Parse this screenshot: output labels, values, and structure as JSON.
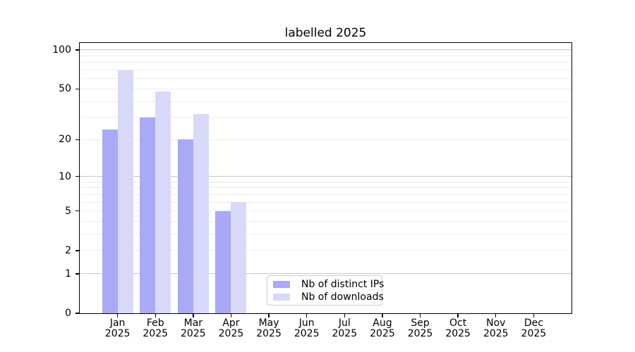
{
  "chart_data": {
    "type": "bar",
    "title": "labelled 2025",
    "categories": [
      "Jan",
      "Feb",
      "Mar",
      "Apr",
      "May",
      "Jun",
      "Jul",
      "Aug",
      "Sep",
      "Oct",
      "Nov",
      "Dec"
    ],
    "year_label": "2025",
    "series": [
      {
        "name": "Nb of distinct IPs",
        "color": "#a9a9f7",
        "values": [
          24,
          30,
          20,
          5,
          0,
          0,
          0,
          0,
          0,
          0,
          0,
          0
        ]
      },
      {
        "name": "Nb of downloads",
        "color": "#d8d8f9",
        "values": [
          70,
          48,
          32,
          6,
          0,
          0,
          0,
          0,
          0,
          0,
          0,
          0
        ]
      }
    ],
    "yscale": "log1p",
    "ylim": [
      0,
      110
    ],
    "yticks": [
      100,
      50,
      20,
      10,
      5,
      2,
      1,
      0
    ],
    "grid": {
      "major": [
        100,
        10,
        1
      ],
      "minor": [
        90,
        80,
        70,
        60,
        50,
        40,
        30,
        20,
        9,
        8,
        7,
        6,
        5,
        4,
        3,
        2
      ]
    },
    "legend": {
      "position": "lower center"
    },
    "colors": {
      "major_grid": "#c5c5c5",
      "minor_grid": "#ebebeb",
      "axis": "#000000",
      "background": "#ffffff"
    }
  }
}
